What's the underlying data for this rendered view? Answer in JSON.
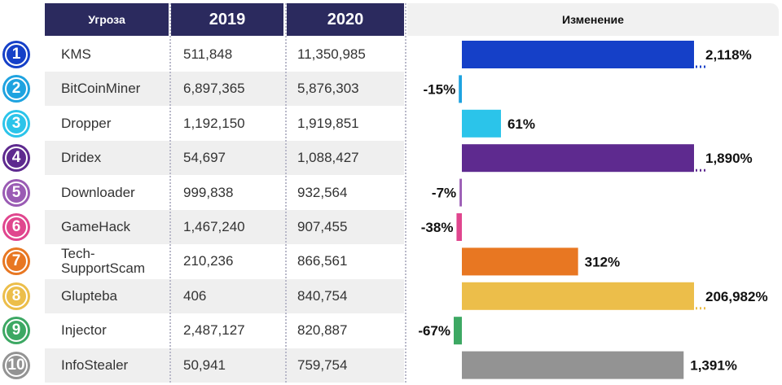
{
  "header": {
    "threat": "Угроза",
    "y2019": "2019",
    "y2020": "2020",
    "change": "Изменение"
  },
  "chart_data": {
    "type": "table",
    "columns": [
      "Угроза",
      "2019",
      "2020",
      "Изменение"
    ],
    "rows": [
      {
        "rank": "1",
        "name": "KMS",
        "v2019": "511,848",
        "v2020": "11,350,985",
        "change": 2118,
        "label": "2,118%",
        "color": "#1540c8"
      },
      {
        "rank": "2",
        "name": "BitCoinMiner",
        "v2019": "6,897,365",
        "v2020": "5,876,303",
        "change": -15,
        "label": "-15%",
        "color": "#1fa3e0"
      },
      {
        "rank": "3",
        "name": "Dropper",
        "v2019": "1,192,150",
        "v2020": "1,919,851",
        "change": 61,
        "label": "61%",
        "color": "#2bc4ea"
      },
      {
        "rank": "4",
        "name": "Dridex",
        "v2019": "54,697",
        "v2020": "1,088,427",
        "change": 1890,
        "label": "1,890%",
        "color": "#5e2a8f"
      },
      {
        "rank": "5",
        "name": "Downloader",
        "v2019": "999,838",
        "v2020": "932,564",
        "change": -7,
        "label": "-7%",
        "color": "#9a5bb4"
      },
      {
        "rank": "6",
        "name": "GameHack",
        "v2019": "1,467,240",
        "v2020": "907,455",
        "change": -38,
        "label": "-38%",
        "color": "#e0468e"
      },
      {
        "rank": "7",
        "name": "Tech-\nSupportScam",
        "v2019": "210,236",
        "v2020": "866,561",
        "change": 312,
        "label": "312%",
        "color": "#e87722"
      },
      {
        "rank": "8",
        "name": "Glupteba",
        "v2019": "406",
        "v2020": "840,754",
        "change": 206982,
        "label": "206,982%",
        "color": "#ecbe4a"
      },
      {
        "rank": "9",
        "name": "Injector",
        "v2019": "2,487,127",
        "v2020": "820,887",
        "change": -67,
        "label": "-67%",
        "color": "#3da863"
      },
      {
        "rank": "10",
        "name": "InfoStealer",
        "v2019": "50,941",
        "v2020": "759,754",
        "change": 1391,
        "label": "1,391%",
        "color": "#939393"
      }
    ]
  }
}
